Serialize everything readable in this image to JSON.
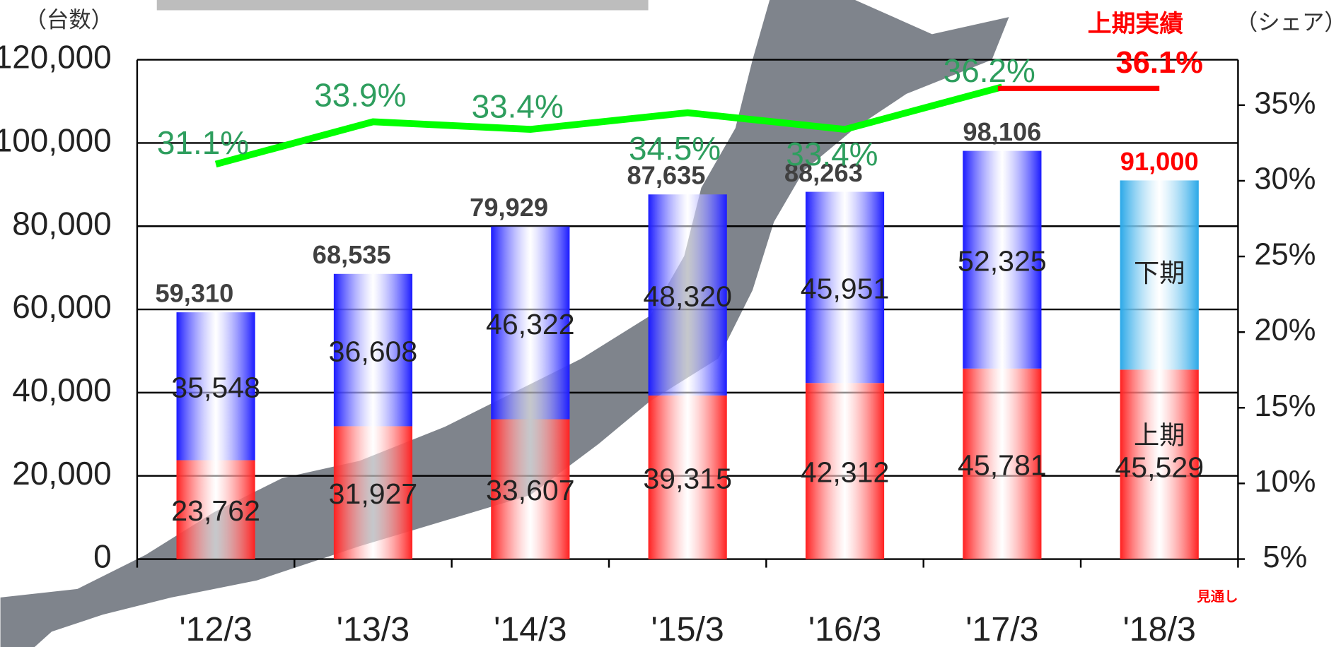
{
  "chart_data": {
    "type": "bar",
    "y_axis_title": "（台数）",
    "y2_axis_title": "（シェア）",
    "categories": [
      "'12/3",
      "'13/3",
      "'14/3",
      "'15/3",
      "'16/3",
      "'17/3",
      "'18/3"
    ],
    "series": [
      {
        "name": "上期",
        "color": "#ff2020",
        "values": [
          23762,
          31927,
          33607,
          39315,
          42312,
          45781,
          45529
        ],
        "value_labels": [
          "23,762",
          "31,927",
          "33,607",
          "39,315",
          "42,312",
          "45,781",
          "45,529"
        ]
      },
      {
        "name": "下期",
        "color": "#1a1aff",
        "colors": [
          "#1a1aff",
          "#1a1aff",
          "#1a1aff",
          "#1a1aff",
          "#1a1aff",
          "#1a1aff",
          "#2aa8e8"
        ],
        "values": [
          35548,
          36608,
          46322,
          48320,
          45951,
          52325,
          45471
        ],
        "value_labels": [
          "35,548",
          "36,608",
          "46,322",
          "48,320",
          "45,951",
          "52,325",
          null
        ]
      },
      {
        "name": "シェア",
        "type": "line",
        "axis": "y2",
        "color": "#00ff00",
        "label_color": "#2e9e5e",
        "values": [
          31.1,
          33.9,
          33.4,
          34.5,
          33.4,
          36.2,
          null
        ],
        "value_labels": [
          "31.1%",
          "33.9%",
          "33.4%",
          "34.5%",
          "33.4%",
          "36.2%",
          null
        ]
      },
      {
        "name": "上期実績",
        "type": "line",
        "axis": "y2",
        "color": "#ff0000",
        "values": [
          null,
          null,
          null,
          null,
          null,
          36.1,
          36.1
        ],
        "value_labels": [
          null,
          null,
          null,
          null,
          null,
          null,
          "36.1%"
        ]
      }
    ],
    "totals": [
      59310,
      68535,
      79929,
      87635,
      88263,
      98106,
      91000
    ],
    "total_labels": [
      "59,310",
      "68,535",
      "79,929",
      "87,635",
      "88,263",
      "98,106",
      "91,000"
    ],
    "annotations": [
      "見通し"
    ],
    "ylim": [
      0,
      120000
    ],
    "yticks": [
      {
        "value": 0,
        "label": "0"
      },
      {
        "value": 20000,
        "label": "20,000"
      },
      {
        "value": 40000,
        "label": "40,000"
      },
      {
        "value": 60000,
        "label": "60,000"
      },
      {
        "value": 80000,
        "label": "80,000"
      },
      {
        "value": 100000,
        "label": "100,000"
      },
      {
        "value": 120000,
        "label": "120,000"
      }
    ],
    "y2lim": [
      5,
      38
    ],
    "y2ticks": [
      {
        "value": 5,
        "label": "5%"
      },
      {
        "value": 10,
        "label": "10%"
      },
      {
        "value": 15,
        "label": "15%"
      },
      {
        "value": 20,
        "label": "20%"
      },
      {
        "value": 25,
        "label": "25%"
      },
      {
        "value": 30,
        "label": "30%"
      },
      {
        "value": 35,
        "label": "35%"
      }
    ],
    "grid": true
  }
}
